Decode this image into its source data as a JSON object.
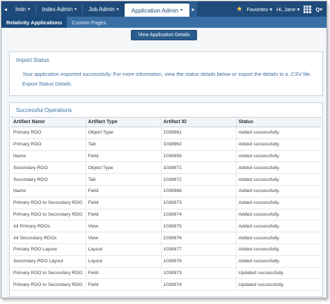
{
  "topnav": {
    "tabs": [
      {
        "label": "Imin",
        "chevron": true
      },
      {
        "label": "Index Admin",
        "chevron": true
      },
      {
        "label": "Job Admin",
        "chevron": true
      },
      {
        "label": "Application Admin",
        "chevron": true,
        "active": true
      }
    ],
    "favorites_label": "Favorites",
    "user_label": "Hi, Jane",
    "search_label": "Q"
  },
  "subnav": {
    "tabs": [
      {
        "label": "Relativity Applications",
        "active": true
      },
      {
        "label": "Custom Pages",
        "active": false
      }
    ]
  },
  "action_button": "View Application Details",
  "import_status": {
    "title": "Import Status",
    "message": "Your application imported successfully. For more information, view the status details below or export the details to a .CSV file.",
    "export_link": "Export Status Details"
  },
  "successful_operations": {
    "title": "Successful Operations",
    "columns": [
      "Artifact Name",
      "Artifact Type",
      "Artifact ID",
      "Status"
    ],
    "rows": [
      [
        "Primary RDO",
        "Object Type",
        "1038961",
        "Added successfully."
      ],
      [
        "Primary RDO",
        "Tab",
        "1038962",
        "Added successfully."
      ],
      [
        "Name",
        "Field",
        "1038958",
        "Added successfully."
      ],
      [
        "Secondary RDO",
        "Object Type",
        "1038971",
        "Added successfully."
      ],
      [
        "Secondary RDO",
        "Tab",
        "1038972",
        "Added successfully."
      ],
      [
        "Name",
        "Field",
        "1038968",
        "Added successfully."
      ],
      [
        "Primary RDO to Secondary RDO",
        "Field",
        "1038973",
        "Added successfully."
      ],
      [
        "Primary RDO to Secondary RDO",
        "Field",
        "1038974",
        "Added successfully."
      ],
      [
        "All Primary RDOs",
        "View",
        "1038975",
        "Added successfully."
      ],
      [
        "All Secondary RDOs",
        "View",
        "1038976",
        "Added successfully."
      ],
      [
        "Primary RDO Layout",
        "Layout",
        "1038977",
        "Added successfully."
      ],
      [
        "Secondary RDO Layout",
        "Layout",
        "1038978",
        "Added successfully."
      ],
      [
        "Primary RDO to Secondary RDO",
        "Field",
        "1038973",
        "Updated successfully."
      ],
      [
        "Primary RDO to Secondary RDO",
        "Field",
        "1038974",
        "Updated successfully."
      ]
    ]
  },
  "colors": {
    "topbar": "#1f4b7b",
    "subbar": "#3a6fa5",
    "link": "#3a6fa5"
  }
}
